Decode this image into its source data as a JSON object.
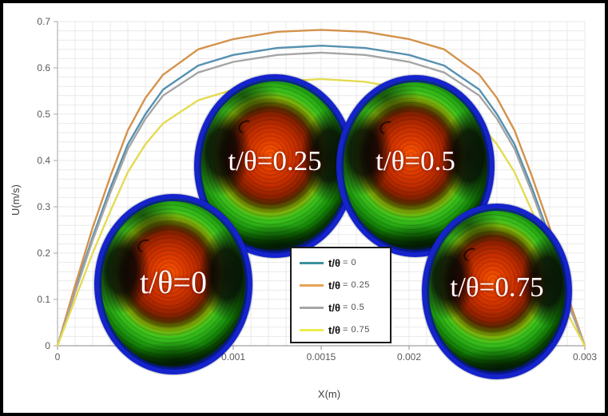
{
  "chart_data": {
    "type": "line",
    "title": "",
    "xlabel": "X(m)",
    "ylabel": "U(m/s)",
    "xlim": [
      0,
      0.003
    ],
    "ylim": [
      0,
      0.7
    ],
    "x_ticks": [
      0,
      0.0005,
      0.001,
      0.0015,
      0.002,
      0.0025,
      0.003
    ],
    "x_tick_labels": [
      "0",
      "0.0005",
      "0.001",
      "0.0015",
      "0.002",
      "0.0025",
      "0.003"
    ],
    "y_ticks": [
      0,
      0.1,
      0.2,
      0.3,
      0.4,
      0.5,
      0.6,
      0.7
    ],
    "y_tick_labels": [
      "0",
      "0.1",
      "0.2",
      "0.3",
      "0.4",
      "0.5",
      "0.6",
      "0.7"
    ],
    "grid": {
      "on": true,
      "minor_x_step": 0.0001,
      "minor_y_step": 0.02,
      "color": "#e9e9e9"
    },
    "axis_color": "#9f9f9f",
    "tick_label_color": "#595959",
    "x": [
      0,
      0.0001,
      0.0002,
      0.0003,
      0.0004,
      0.0005,
      0.0006,
      0.0008,
      0.001,
      0.00125,
      0.0015,
      0.00175,
      0.002,
      0.0022,
      0.0024,
      0.0025,
      0.0026,
      0.0027,
      0.0028,
      0.0029,
      0.003
    ],
    "series": [
      {
        "name": "t/θ = 0",
        "color": "#5591B0",
        "values": [
          0,
          0.12,
          0.235,
          0.34,
          0.435,
          0.5,
          0.553,
          0.605,
          0.628,
          0.643,
          0.648,
          0.643,
          0.628,
          0.605,
          0.553,
          0.5,
          0.435,
          0.34,
          0.235,
          0.1,
          0
        ]
      },
      {
        "name": "t/θ = 0.25",
        "color": "#D4924A",
        "values": [
          0,
          0.13,
          0.255,
          0.365,
          0.465,
          0.535,
          0.585,
          0.64,
          0.662,
          0.678,
          0.682,
          0.678,
          0.662,
          0.64,
          0.585,
          0.535,
          0.465,
          0.365,
          0.255,
          0.11,
          0
        ]
      },
      {
        "name": "t/θ = 0.5",
        "color": "#A5A5A5",
        "values": [
          0,
          0.115,
          0.228,
          0.33,
          0.425,
          0.49,
          0.54,
          0.59,
          0.613,
          0.628,
          0.633,
          0.628,
          0.613,
          0.59,
          0.54,
          0.49,
          0.425,
          0.33,
          0.228,
          0.095,
          0
        ]
      },
      {
        "name": "t/θ = 0.75",
        "color": "#E4DB52",
        "values": [
          0,
          0.1,
          0.2,
          0.29,
          0.375,
          0.435,
          0.48,
          0.53,
          0.553,
          0.57,
          0.576,
          0.57,
          0.553,
          0.53,
          0.48,
          0.435,
          0.375,
          0.29,
          0.2,
          0.07,
          0
        ]
      }
    ],
    "legend": {
      "position": "inside-bottom-center",
      "items": [
        {
          "symbol": "t/θ",
          "value": "= 0",
          "color": "#3D929C"
        },
        {
          "symbol": "t/θ",
          "value": "= 0.25",
          "color": "#E8A254"
        },
        {
          "symbol": "t/θ",
          "value": "= 0.5",
          "color": "#A6A6A6"
        },
        {
          "symbol": "t/θ",
          "value": "= 0.75",
          "color": "#EFEB52"
        }
      ]
    },
    "insets": [
      {
        "label": "t/θ=0",
        "description": "velocity contour circle"
      },
      {
        "label": "t/θ=0.25",
        "description": "velocity contour circle"
      },
      {
        "label": "t/θ=0.5",
        "description": "velocity contour circle"
      },
      {
        "label": "t/θ=0.75",
        "description": "velocity contour circle"
      }
    ]
  },
  "figure": {
    "border_color": "#000000",
    "background": "#ffffff"
  }
}
